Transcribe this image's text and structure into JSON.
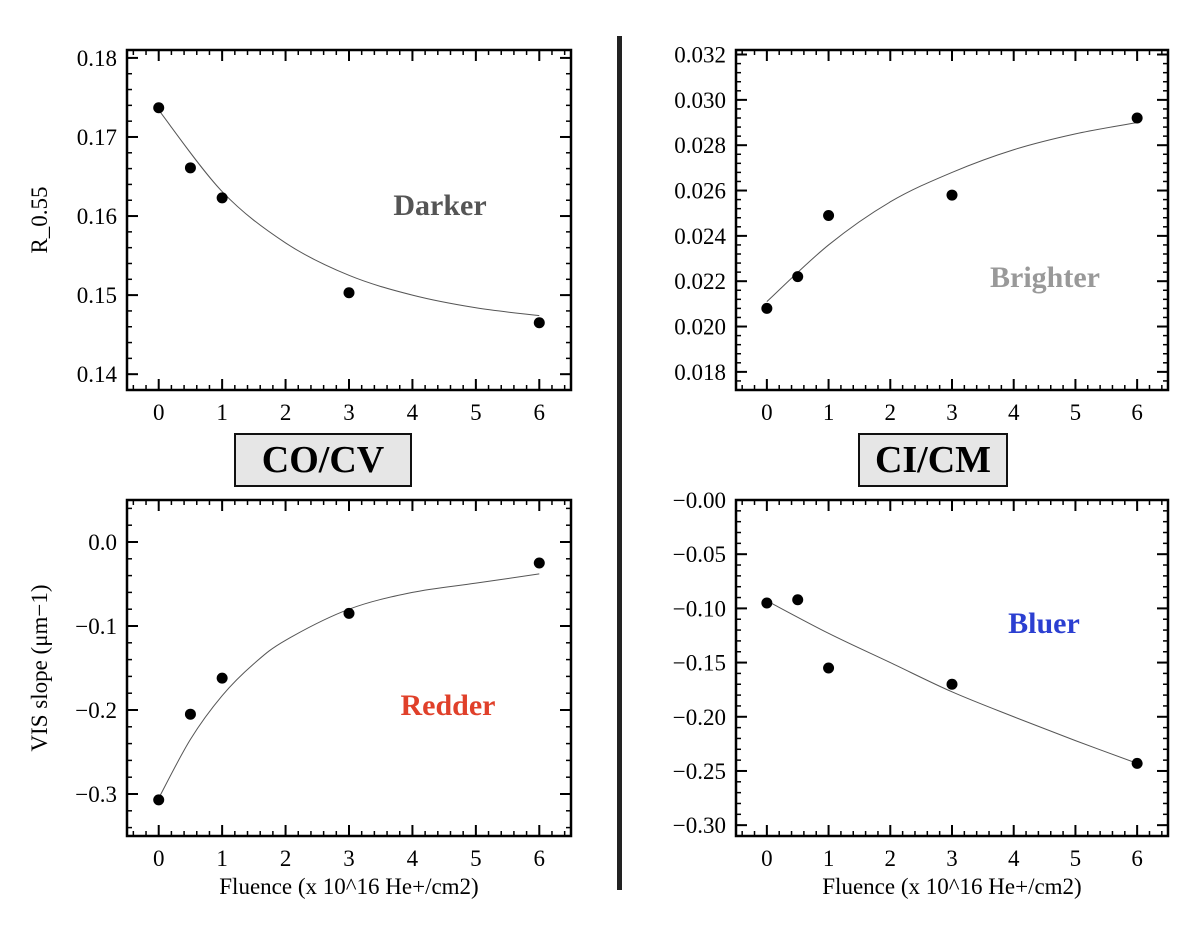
{
  "groups": {
    "left": "CO/CV",
    "right": "CI/CM"
  },
  "chart_data": [
    {
      "id": "tl",
      "type": "scatter",
      "ylabel": "R_0.55",
      "xlabel": "",
      "annotation": "Darker",
      "annotation_color": "#555555",
      "xlim": [
        -0.5,
        6.5
      ],
      "ylim": [
        0.138,
        0.181
      ],
      "xticks": [
        0,
        1,
        2,
        3,
        4,
        5,
        6
      ],
      "yticks": [
        0.14,
        0.15,
        0.16,
        0.17,
        0.18
      ],
      "ytick_labels": [
        "0.14",
        "0.15",
        "0.16",
        "0.17",
        "0.18"
      ],
      "points": [
        [
          0,
          0.1737
        ],
        [
          0.5,
          0.1661
        ],
        [
          1,
          0.1623
        ],
        [
          3,
          0.1503
        ],
        [
          6,
          0.1465
        ]
      ],
      "fit": [
        [
          0,
          0.1734
        ],
        [
          1,
          0.1631
        ],
        [
          2,
          0.1566
        ],
        [
          3,
          0.1525
        ],
        [
          4,
          0.15
        ],
        [
          5,
          0.1484
        ],
        [
          6,
          0.1474
        ]
      ]
    },
    {
      "id": "tr",
      "type": "scatter",
      "ylabel": "",
      "xlabel": "",
      "annotation": "Brighter",
      "annotation_color": "#999999",
      "xlim": [
        -0.5,
        6.5
      ],
      "ylim": [
        0.0172,
        0.0322
      ],
      "xticks": [
        0,
        1,
        2,
        3,
        4,
        5,
        6
      ],
      "yticks": [
        0.018,
        0.02,
        0.022,
        0.024,
        0.026,
        0.028,
        0.03,
        0.032
      ],
      "ytick_labels": [
        "0.018",
        "0.020",
        "0.022",
        "0.024",
        "0.026",
        "0.028",
        "0.030",
        "0.032"
      ],
      "points": [
        [
          0,
          0.0208
        ],
        [
          0.5,
          0.0222
        ],
        [
          1,
          0.0249
        ],
        [
          3,
          0.0258
        ],
        [
          6,
          0.0292
        ]
      ],
      "fit": [
        [
          0,
          0.0211
        ],
        [
          1,
          0.0236
        ],
        [
          2,
          0.0255
        ],
        [
          3,
          0.0268
        ],
        [
          4,
          0.0278
        ],
        [
          5,
          0.0285
        ],
        [
          6,
          0.029
        ]
      ]
    },
    {
      "id": "bl",
      "type": "scatter",
      "ylabel": "VIS slope (μm−1)",
      "xlabel": "Fluence (x 10^16 He+/cm2)",
      "annotation": "Redder",
      "annotation_color": "#e0402a",
      "xlim": [
        -0.5,
        6.5
      ],
      "ylim": [
        -0.35,
        0.05
      ],
      "xticks": [
        0,
        1,
        2,
        3,
        4,
        5,
        6
      ],
      "yticks": [
        -0.3,
        -0.2,
        -0.1,
        0.0
      ],
      "ytick_labels": [
        "−0.3",
        "−0.2",
        "−0.1",
        "0.0"
      ],
      "points": [
        [
          0,
          -0.307
        ],
        [
          0.5,
          -0.205
        ],
        [
          1,
          -0.162
        ],
        [
          3,
          -0.085
        ],
        [
          6,
          -0.025
        ]
      ],
      "fit": [
        [
          0,
          -0.305
        ],
        [
          0.5,
          -0.235
        ],
        [
          1,
          -0.183
        ],
        [
          1.5,
          -0.145
        ],
        [
          2,
          -0.117
        ],
        [
          3,
          -0.08
        ],
        [
          4,
          -0.06
        ],
        [
          5,
          -0.049
        ],
        [
          6,
          -0.038
        ]
      ]
    },
    {
      "id": "br",
      "type": "scatter",
      "ylabel": "",
      "xlabel": "Fluence (x 10^16 He+/cm2)",
      "annotation": "Bluer",
      "annotation_color": "#2b3fd1",
      "xlim": [
        -0.5,
        6.5
      ],
      "ylim": [
        -0.31,
        0.0
      ],
      "xticks": [
        0,
        1,
        2,
        3,
        4,
        5,
        6
      ],
      "yticks": [
        -0.3,
        -0.25,
        -0.2,
        -0.15,
        -0.1,
        -0.05,
        0.0
      ],
      "ytick_labels": [
        "−0.30",
        "−0.25",
        "−0.20",
        "−0.15",
        "−0.10",
        "−0.05",
        "−0.00"
      ],
      "points": [
        [
          0,
          -0.095
        ],
        [
          0.5,
          -0.092
        ],
        [
          1,
          -0.155
        ],
        [
          3,
          -0.17
        ],
        [
          6,
          -0.243
        ]
      ],
      "fit": [
        [
          0,
          -0.093
        ],
        [
          1,
          -0.123
        ],
        [
          2,
          -0.15
        ],
        [
          3,
          -0.177
        ],
        [
          4,
          -0.2
        ],
        [
          5,
          -0.222
        ],
        [
          6,
          -0.243
        ]
      ]
    }
  ]
}
